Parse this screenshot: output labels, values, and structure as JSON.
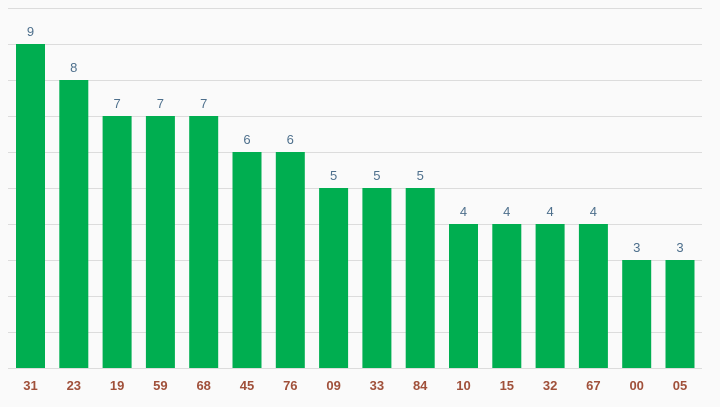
{
  "chart_data": {
    "type": "bar",
    "categories": [
      "31",
      "23",
      "19",
      "59",
      "68",
      "45",
      "76",
      "09",
      "33",
      "84",
      "10",
      "15",
      "32",
      "67",
      "00",
      "05"
    ],
    "values": [
      9,
      8,
      7,
      7,
      7,
      6,
      6,
      5,
      5,
      5,
      4,
      4,
      4,
      4,
      3,
      3
    ],
    "ylim": [
      0,
      10
    ],
    "grid": true,
    "colors": {
      "bar": "#00ae50",
      "value_label": "#4d6f8c",
      "tick_label": "#a0503a",
      "grid": "#dcdcdc",
      "background": "#fafafa"
    }
  }
}
